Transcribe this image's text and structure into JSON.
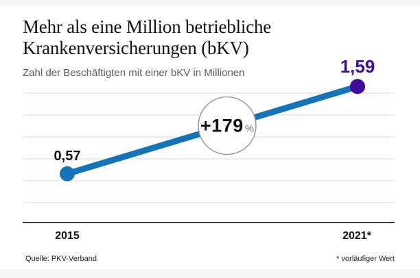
{
  "header": {
    "title_line1": "Mehr als eine Million betriebliche",
    "title_line2": "Krankenversicherungen (bKV)",
    "subtitle": "Zahl der Beschäftigten mit einer bKV in Millionen"
  },
  "chart_data": {
    "type": "line",
    "title": "Mehr als eine Million betriebliche Krankenversicherungen (bKV)",
    "subtitle": "Zahl der Beschäftigten mit einer bKV in Millionen",
    "categories": [
      "2015",
      "2021*"
    ],
    "values": [
      0.57,
      1.59
    ],
    "value_labels": [
      "0,57",
      "1,59"
    ],
    "unit": "Millionen",
    "annotation": {
      "value": "+179",
      "suffix": "%"
    },
    "ylim": [
      0,
      1.6
    ],
    "grid": true,
    "legend": "none",
    "colors": {
      "line": "#1573b8",
      "point_start": "#1573b8",
      "point_end": "#3d0c9e",
      "label_start": "#111111",
      "label_end": "#3d0c9e",
      "annotation_border": "#9a9a9a"
    }
  },
  "footer": {
    "source": "Quelle: PKV-Verband",
    "footnote": "* vorläufiger Wert"
  }
}
